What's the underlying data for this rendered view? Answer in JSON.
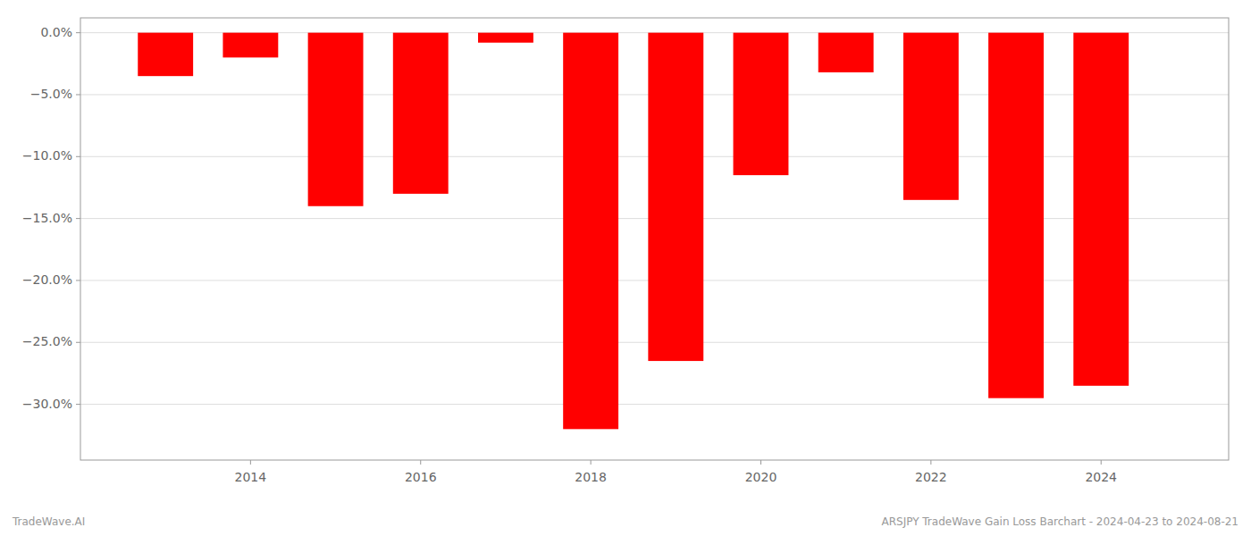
{
  "chart_data": {
    "type": "bar",
    "x": [
      2013,
      2014,
      2015,
      2016,
      2017,
      2018,
      2019,
      2020,
      2021,
      2022,
      2023,
      2024
    ],
    "values": [
      -3.5,
      -2.0,
      -14.0,
      -13.0,
      -0.8,
      -32.0,
      -26.5,
      -11.5,
      -3.2,
      -13.5,
      -29.5,
      -28.5
    ],
    "color": "#ff0000",
    "xlim": [
      2012.0,
      2025.5
    ],
    "xticks": [
      2014,
      2016,
      2018,
      2020,
      2022,
      2024
    ],
    "ylim": [
      -34.5,
      1.2
    ],
    "yticks": [
      {
        "value": 0.0,
        "label": "0.0%"
      },
      {
        "value": -5.0,
        "label": "−5.0%"
      },
      {
        "value": -10.0,
        "label": "−10.0%"
      },
      {
        "value": -15.0,
        "label": "−15.0%"
      },
      {
        "value": -20.0,
        "label": "−20.0%"
      },
      {
        "value": -25.0,
        "label": "−25.0%"
      },
      {
        "value": -30.0,
        "label": "−30.0%"
      }
    ],
    "grid": true,
    "annotations": [
      "TradeWave.AI",
      "ARSJPY TradeWave Gain Loss Barchart - 2024-04-23 to 2024-08-21"
    ]
  }
}
